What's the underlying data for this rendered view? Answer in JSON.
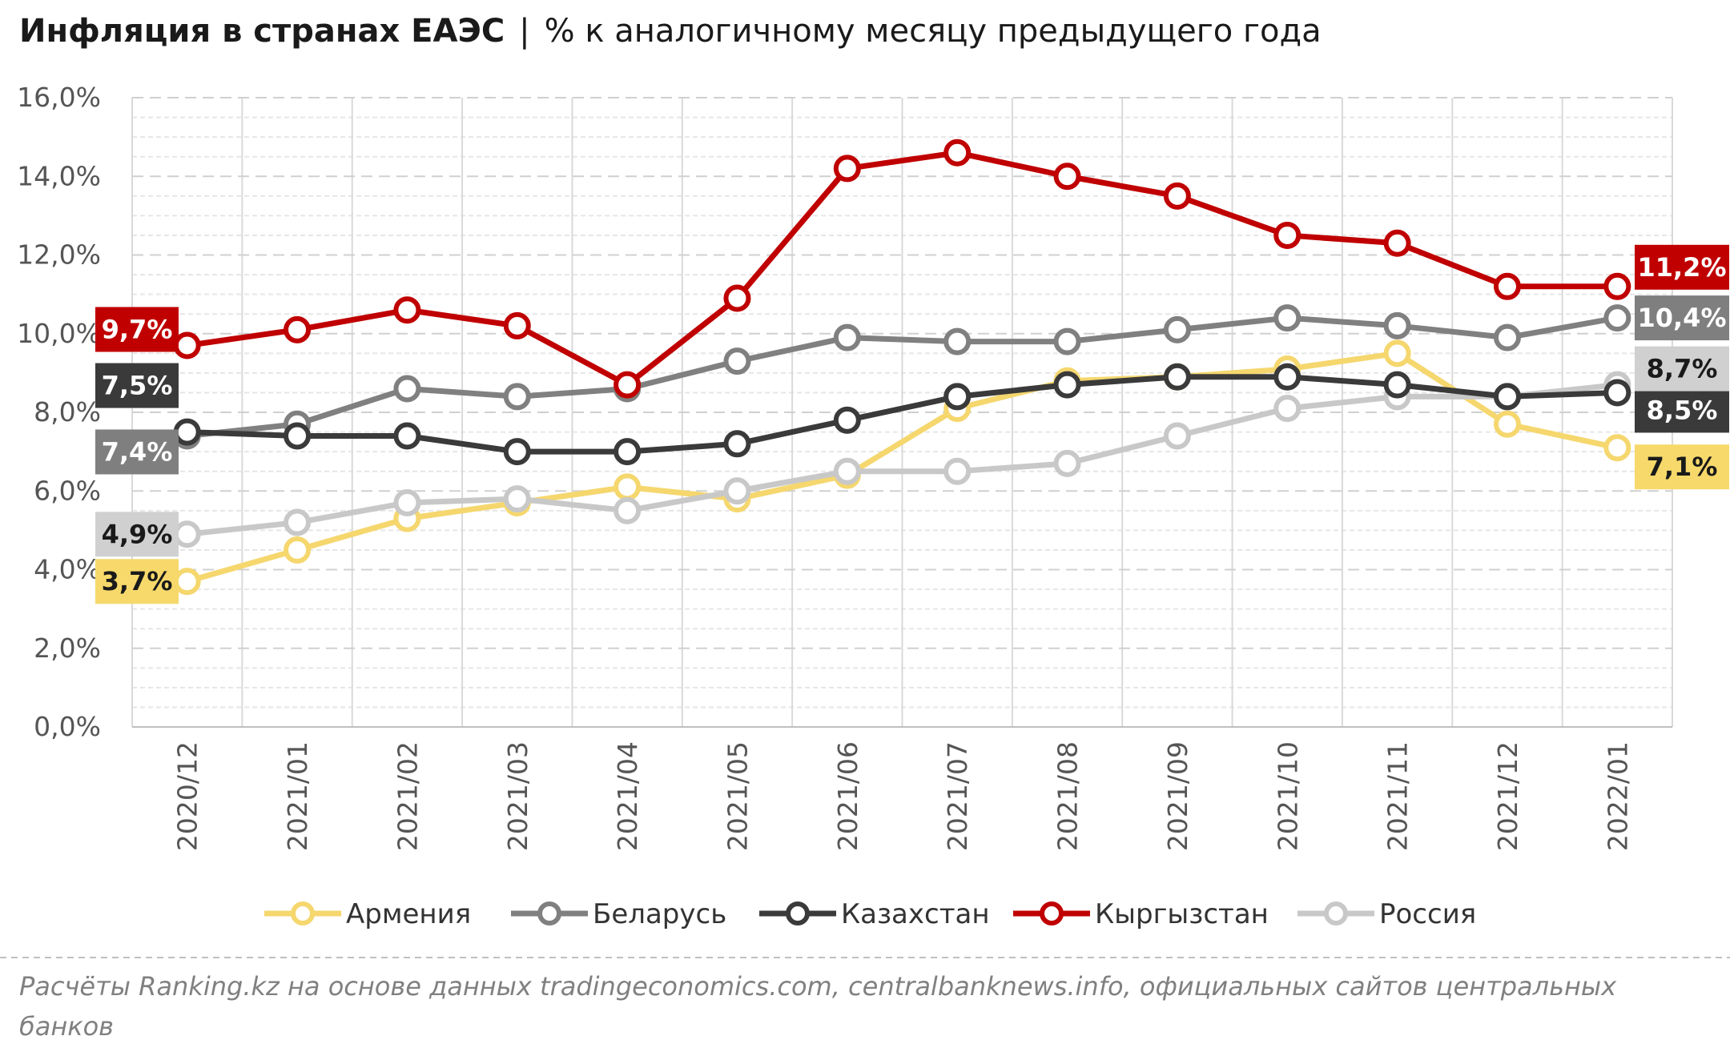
{
  "chart_data": {
    "type": "line",
    "title": "Инфляция в странах ЕАЭС",
    "subtitle": "% к аналогичному месяцу предыдущего года",
    "categories": [
      "2020/12",
      "2021/01",
      "2021/02",
      "2021/03",
      "2021/04",
      "2021/05",
      "2021/06",
      "2021/07",
      "2021/08",
      "2021/09",
      "2021/10",
      "2021/11",
      "2021/12",
      "2022/01"
    ],
    "ylim": [
      0,
      16
    ],
    "yticks": [
      0,
      2,
      4,
      6,
      8,
      10,
      12,
      14,
      16
    ],
    "ytick_labels": [
      "0,0%",
      "2,0%",
      "4,0%",
      "6,0%",
      "8,0%",
      "10,0%",
      "12,0%",
      "14,0%",
      "16,0%"
    ],
    "grid": true,
    "legend_position": "bottom",
    "series": [
      {
        "name": "Армения",
        "color": "#f5d76e",
        "label_bg": "#f7d96b",
        "label_fg": "#1a1a1a",
        "values": [
          3.7,
          4.5,
          5.3,
          5.7,
          6.1,
          5.8,
          6.4,
          8.1,
          8.8,
          8.9,
          9.1,
          9.5,
          7.7,
          7.1
        ],
        "start_label": "3,7%",
        "end_label": "7,1%"
      },
      {
        "name": "Беларусь",
        "color": "#808080",
        "label_bg": "#7f7f7f",
        "label_fg": "#ffffff",
        "values": [
          7.4,
          7.7,
          8.6,
          8.4,
          8.6,
          9.3,
          9.9,
          9.8,
          9.8,
          10.1,
          10.4,
          10.2,
          9.9,
          10.4
        ],
        "start_label": "7,4%",
        "end_label": "10,4%"
      },
      {
        "name": "Казахстан",
        "color": "#3a3a3a",
        "label_bg": "#3a3a3a",
        "label_fg": "#ffffff",
        "values": [
          7.5,
          7.4,
          7.4,
          7.0,
          7.0,
          7.2,
          7.8,
          8.4,
          8.7,
          8.9,
          8.9,
          8.7,
          8.4,
          8.5
        ],
        "start_label": "7,5%",
        "end_label": "8,5%"
      },
      {
        "name": "Кыргызстан",
        "color": "#c00000",
        "label_bg": "#c00000",
        "label_fg": "#ffffff",
        "values": [
          9.7,
          10.1,
          10.6,
          10.2,
          8.7,
          10.9,
          14.2,
          14.6,
          14.0,
          13.5,
          12.5,
          12.3,
          11.2,
          11.2
        ],
        "start_label": "9,7%",
        "end_label": "11,2%"
      },
      {
        "name": "Россия",
        "color": "#c8c8c8",
        "label_bg": "#d0d0d0",
        "label_fg": "#1a1a1a",
        "values": [
          4.9,
          5.2,
          5.7,
          5.8,
          5.5,
          6.0,
          6.5,
          6.5,
          6.7,
          7.4,
          8.1,
          8.4,
          8.4,
          8.7
        ],
        "start_label": "4,9%",
        "end_label": "8,7%"
      }
    ]
  },
  "source": {
    "line1": "Расчёты Ranking.kz на основе данных tradingeconomics.com, centralbanknews.info, официальных сайтов центральных",
    "line2": "банков"
  }
}
